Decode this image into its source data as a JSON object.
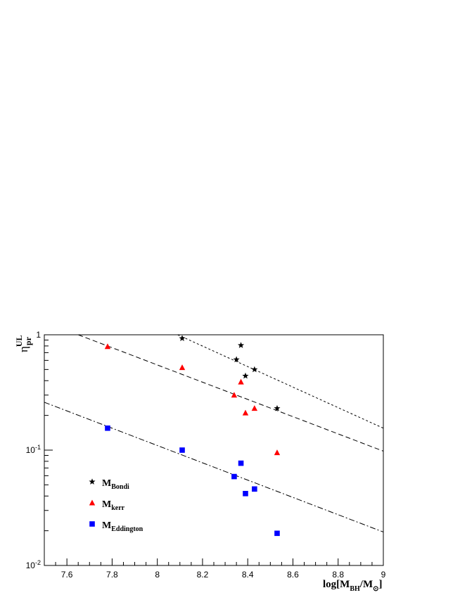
{
  "chart_data": {
    "type": "scatter",
    "xlabel": {
      "main": "log[M",
      "sub1": "BH",
      "mid": "/M",
      "sub2": "⊙",
      "end": "]"
    },
    "ylabel": {
      "main": "η",
      "sup": "UL",
      "sub": "pr"
    },
    "xlim": [
      7.5,
      9.0
    ],
    "ylim": [
      0.01,
      1.0
    ],
    "yscale": "log",
    "grid": false,
    "legend_placement": "lower-left",
    "x_ticks": [
      7.6,
      7.8,
      8.0,
      8.2,
      8.4,
      8.6,
      8.8,
      9.0
    ],
    "x_tick_labels": [
      "7.6",
      "7.8",
      "8",
      "8.2",
      "8.4",
      "8.6",
      "8.8",
      "9"
    ],
    "y_ticks": [
      {
        "value": 0.01,
        "base": "10",
        "exp": "-2"
      },
      {
        "value": 0.1,
        "base": "10",
        "exp": "-1"
      },
      {
        "value": 1,
        "base": "1",
        "exp": ""
      }
    ],
    "series": [
      {
        "name": "M",
        "name_sub": "Bondi",
        "marker": "star",
        "color": "#000000",
        "points": [
          [
            8.11,
            0.93
          ],
          [
            8.35,
            0.61
          ],
          [
            8.37,
            0.81
          ],
          [
            8.39,
            0.44
          ],
          [
            8.43,
            0.5
          ],
          [
            8.53,
            0.23
          ]
        ]
      },
      {
        "name": "M",
        "name_sub": "kerr",
        "marker": "triangle",
        "color": "#ff0000",
        "points": [
          [
            7.78,
            0.79
          ],
          [
            8.11,
            0.52
          ],
          [
            8.34,
            0.3
          ],
          [
            8.37,
            0.39
          ],
          [
            8.39,
            0.21
          ],
          [
            8.43,
            0.23
          ],
          [
            8.53,
            0.095
          ]
        ]
      },
      {
        "name": "M",
        "name_sub": "Eddington",
        "marker": "square",
        "color": "#0000ff",
        "points": [
          [
            7.78,
            0.155
          ],
          [
            8.11,
            0.1
          ],
          [
            8.34,
            0.059
          ],
          [
            8.37,
            0.077
          ],
          [
            8.39,
            0.042
          ],
          [
            8.43,
            0.046
          ],
          [
            8.53,
            0.019
          ]
        ]
      }
    ],
    "lines": [
      {
        "style": "dotted",
        "color": "#000000",
        "points": [
          [
            8.09,
            1.0
          ],
          [
            9.0,
            0.155
          ]
        ]
      },
      {
        "style": "dashed",
        "color": "#000000",
        "points": [
          [
            7.65,
            1.0
          ],
          [
            9.0,
            0.098
          ]
        ]
      },
      {
        "style": "dashdot",
        "color": "#000000",
        "points": [
          [
            7.5,
            0.26
          ],
          [
            9.0,
            0.0195
          ]
        ]
      }
    ]
  }
}
